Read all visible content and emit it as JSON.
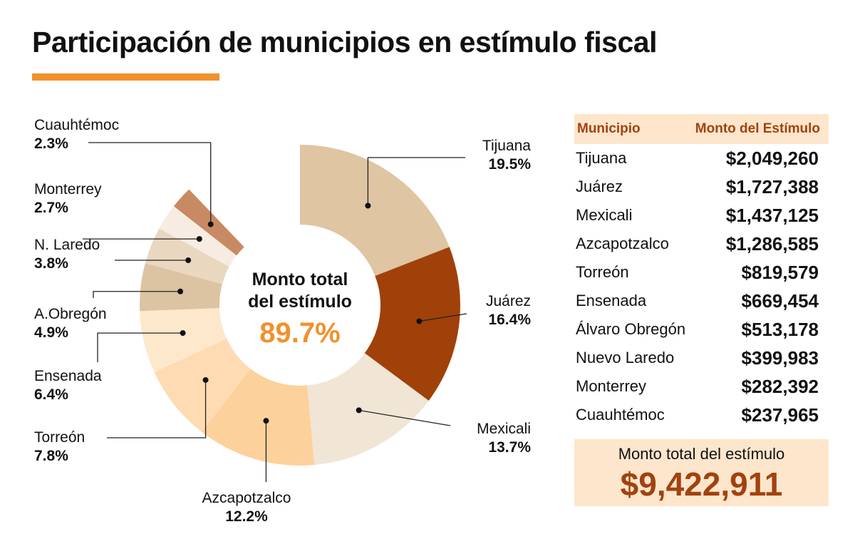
{
  "title": "Participación de municipios en estímulo fiscal",
  "colors": {
    "accent": "#f0922c",
    "brand_dark": "#a1420f",
    "table_bg": "#fde6cc"
  },
  "chart_data": {
    "type": "pie",
    "subtype": "donut",
    "center_label_lines": [
      "Monto total",
      "del estímulo"
    ],
    "center_value": "89.7%",
    "slices": [
      {
        "name": "Tijuana",
        "value": 19.5,
        "label": "19.5%",
        "color": "#dfc5a2"
      },
      {
        "name": "Juárez",
        "value": 16.4,
        "label": "16.4%",
        "color": "#a0410a"
      },
      {
        "name": "Mexicali",
        "value": 13.7,
        "label": "13.7%",
        "color": "#f1e5d6"
      },
      {
        "name": "Azcapotzalco",
        "value": 12.2,
        "label": "12.2%",
        "color": "#fdd19b"
      },
      {
        "name": "Torreón",
        "value": 7.8,
        "label": "7.8%",
        "color": "#fedbb2"
      },
      {
        "name": "Ensenada",
        "value": 6.4,
        "label": "6.4%",
        "color": "#fee8cc"
      },
      {
        "name": "A.Obregón",
        "value": 4.9,
        "label": "4.9%",
        "color": "#dcc4a2"
      },
      {
        "name": "N. Laredo",
        "value": 3.8,
        "label": "3.8%",
        "color": "#ead7c0"
      },
      {
        "name": "Monterrey",
        "value": 2.7,
        "label": "2.7%",
        "color": "#f6ece2"
      },
      {
        "name": "Cuauhtémoc",
        "value": 2.3,
        "label": "2.3%",
        "color": "#c88a62"
      }
    ]
  },
  "table": {
    "headers": [
      "Municipio",
      "Monto del Estímulo"
    ],
    "rows": [
      [
        "Tijuana",
        "$2,049,260"
      ],
      [
        "Juárez",
        "$1,727,388"
      ],
      [
        "Mexicali",
        "$1,437,125"
      ],
      [
        "Azcapotzalco",
        "$1,286,585"
      ],
      [
        "Torreón",
        "$819,579"
      ],
      [
        "Ensenada",
        "$669,454"
      ],
      [
        "Álvaro Obregón",
        "$513,178"
      ],
      [
        "Nuevo Laredo",
        "$399,983"
      ],
      [
        "Monterrey",
        "$282,392"
      ],
      [
        "Cuauhtémoc",
        "$237,965"
      ]
    ],
    "total_label": "Monto total del estímulo",
    "total_value": "$9,422,911"
  }
}
